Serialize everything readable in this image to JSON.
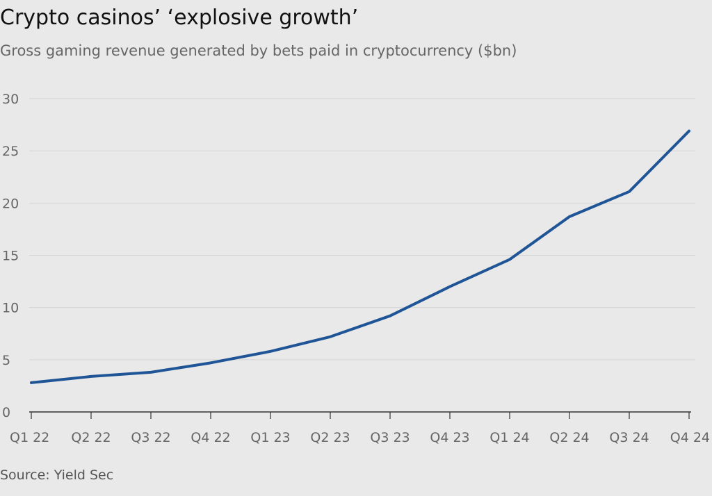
{
  "title": "Crypto casinos’ ‘explosive growth’",
  "subtitle": "Gross gaming revenue generated by bets paid in cryptocurrency ($bn)",
  "source": "Source: Yield Sec",
  "colors": {
    "background": "#e9e9e9",
    "line": "#1f5596",
    "grid": "#d4d4d4",
    "axis": "#333333"
  },
  "chart_data": {
    "type": "line",
    "title": "Crypto casinos’ ‘explosive growth’",
    "subtitle": "Gross gaming revenue generated by bets paid in cryptocurrency ($bn)",
    "xlabel": "",
    "ylabel": "",
    "categories": [
      "Q1 22",
      "Q2 22",
      "Q3 22",
      "Q4 22",
      "Q1 23",
      "Q2 23",
      "Q3 23",
      "Q4 23",
      "Q1 24",
      "Q2 24",
      "Q3 24",
      "Q4 24"
    ],
    "series": [
      {
        "values": [
          2.8,
          3.4,
          3.8,
          4.7,
          5.8,
          7.2,
          9.2,
          12.0,
          14.6,
          18.7,
          21.1,
          26.9
        ]
      }
    ],
    "yticks": [
      0,
      5,
      10,
      15,
      20,
      25,
      30
    ],
    "ylim": [
      0,
      30
    ],
    "grid": true,
    "legend": "none"
  }
}
